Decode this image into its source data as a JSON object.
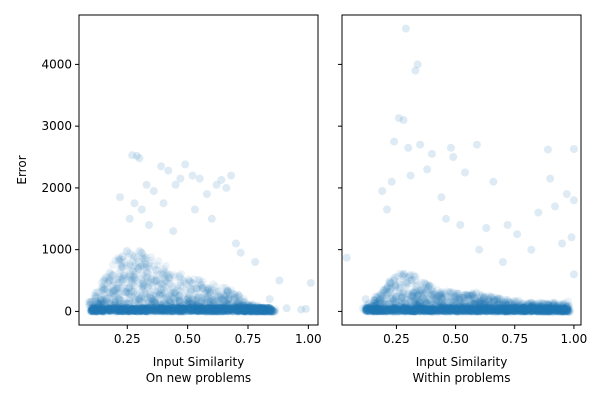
{
  "chart_data": [
    {
      "type": "scatter",
      "panel": "left",
      "xlabel": "Input Similarity",
      "subtitle": "On new problems",
      "ylabel": "Error",
      "xlim": [
        0.05,
        1.04
      ],
      "ylim": [
        -220,
        4800
      ],
      "x_ticks": [
        0.25,
        0.5,
        0.75,
        1.0
      ],
      "x_tick_labels": [
        "0.25",
        "0.50",
        "0.75",
        "1.00"
      ],
      "y_ticks": [
        0,
        1000,
        2000,
        3000,
        4000
      ],
      "y_tick_labels": [
        "0",
        "1000",
        "2000",
        "3000",
        "4000"
      ],
      "marker_color": "#1f77b4",
      "marker_alpha": 0.08,
      "density_profile": [
        {
          "x": 0.1,
          "y_max": 200
        },
        {
          "x": 0.15,
          "y_max": 500
        },
        {
          "x": 0.2,
          "y_max": 850
        },
        {
          "x": 0.25,
          "y_max": 1000
        },
        {
          "x": 0.3,
          "y_max": 1000
        },
        {
          "x": 0.35,
          "y_max": 900
        },
        {
          "x": 0.4,
          "y_max": 800
        },
        {
          "x": 0.45,
          "y_max": 650
        },
        {
          "x": 0.5,
          "y_max": 550
        },
        {
          "x": 0.55,
          "y_max": 500
        },
        {
          "x": 0.6,
          "y_max": 450
        },
        {
          "x": 0.65,
          "y_max": 400
        },
        {
          "x": 0.7,
          "y_max": 300
        },
        {
          "x": 0.75,
          "y_max": 150
        },
        {
          "x": 0.8,
          "y_max": 80
        },
        {
          "x": 0.85,
          "y_max": 30
        }
      ],
      "outliers": [
        [
          0.27,
          2530
        ],
        [
          0.29,
          2520
        ],
        [
          0.3,
          2480
        ],
        [
          0.39,
          2350
        ],
        [
          0.42,
          2280
        ],
        [
          0.45,
          2050
        ],
        [
          0.47,
          2150
        ],
        [
          0.49,
          2380
        ],
        [
          0.52,
          2200
        ],
        [
          0.55,
          2150
        ],
        [
          0.58,
          1900
        ],
        [
          0.62,
          2050
        ],
        [
          0.64,
          2130
        ],
        [
          0.66,
          2000
        ],
        [
          0.68,
          2200
        ],
        [
          0.36,
          1950
        ],
        [
          0.33,
          2050
        ],
        [
          0.22,
          1850
        ],
        [
          0.4,
          1750
        ],
        [
          0.53,
          1650
        ],
        [
          0.6,
          1500
        ],
        [
          0.7,
          1100
        ],
        [
          0.72,
          950
        ],
        [
          0.78,
          800
        ],
        [
          0.88,
          500
        ],
        [
          0.91,
          50
        ],
        [
          0.97,
          30
        ],
        [
          0.99,
          40
        ],
        [
          1.01,
          460
        ],
        [
          0.84,
          200
        ],
        [
          0.26,
          1500
        ],
        [
          0.34,
          1400
        ],
        [
          0.44,
          1300
        ],
        [
          0.31,
          1650
        ],
        [
          0.28,
          1750
        ]
      ]
    },
    {
      "type": "scatter",
      "panel": "right",
      "xlabel": "Input Similarity",
      "subtitle": "Within problems",
      "ylabel": "",
      "xlim": [
        0.02,
        1.03
      ],
      "ylim": [
        -220,
        4800
      ],
      "x_ticks": [
        0.25,
        0.5,
        0.75,
        1.0
      ],
      "x_tick_labels": [
        "0.25",
        "0.50",
        "0.75",
        "1.00"
      ],
      "y_ticks": [
        0,
        1000,
        2000,
        3000,
        4000
      ],
      "y_tick_labels": [],
      "marker_color": "#1f77b4",
      "marker_alpha": 0.08,
      "density_profile": [
        {
          "x": 0.12,
          "y_max": 100
        },
        {
          "x": 0.18,
          "y_max": 300
        },
        {
          "x": 0.22,
          "y_max": 500
        },
        {
          "x": 0.27,
          "y_max": 650
        },
        {
          "x": 0.32,
          "y_max": 600
        },
        {
          "x": 0.38,
          "y_max": 450
        },
        {
          "x": 0.45,
          "y_max": 350
        },
        {
          "x": 0.5,
          "y_max": 300
        },
        {
          "x": 0.55,
          "y_max": 280
        },
        {
          "x": 0.6,
          "y_max": 300
        },
        {
          "x": 0.65,
          "y_max": 250
        },
        {
          "x": 0.7,
          "y_max": 200
        },
        {
          "x": 0.8,
          "y_max": 150
        },
        {
          "x": 0.9,
          "y_max": 130
        },
        {
          "x": 0.98,
          "y_max": 160
        }
      ],
      "outliers": [
        [
          0.29,
          4580
        ],
        [
          0.34,
          4000
        ],
        [
          0.33,
          3900
        ],
        [
          0.26,
          3130
        ],
        [
          0.28,
          3100
        ],
        [
          0.3,
          2650
        ],
        [
          0.24,
          2750
        ],
        [
          0.35,
          2700
        ],
        [
          0.4,
          2550
        ],
        [
          0.48,
          2650
        ],
        [
          0.49,
          2500
        ],
        [
          0.54,
          2250
        ],
        [
          0.59,
          2700
        ],
        [
          0.66,
          2100
        ],
        [
          0.89,
          2620
        ],
        [
          1.0,
          2630
        ],
        [
          0.9,
          2150
        ],
        [
          0.97,
          1900
        ],
        [
          0.85,
          1600
        ],
        [
          0.92,
          1700
        ],
        [
          1.0,
          1800
        ],
        [
          0.44,
          1850
        ],
        [
          0.38,
          2300
        ],
        [
          0.31,
          2200
        ],
        [
          0.19,
          1950
        ],
        [
          0.21,
          1650
        ],
        [
          0.23,
          2100
        ],
        [
          0.46,
          1500
        ],
        [
          0.52,
          1400
        ],
        [
          0.63,
          1350
        ],
        [
          0.72,
          1400
        ],
        [
          0.76,
          1250
        ],
        [
          0.82,
          1000
        ],
        [
          0.95,
          1100
        ],
        [
          0.99,
          1200
        ],
        [
          1.0,
          600
        ],
        [
          0.04,
          870
        ],
        [
          0.12,
          200
        ],
        [
          0.7,
          800
        ],
        [
          0.6,
          1000
        ]
      ]
    }
  ]
}
